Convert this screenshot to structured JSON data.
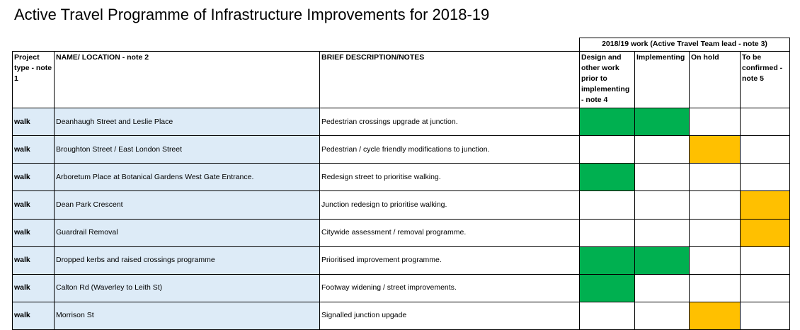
{
  "title": "Active Travel Programme of Infrastructure Improvements for 2018-19",
  "table": {
    "group_header": "2018/19 work (Active Travel Team lead - note 3)",
    "columns": [
      "Project type - note 1",
      "NAME/ LOCATION - note 2",
      "BRIEF DESCRIPTION/NOTES",
      "Design and other work prior to implementing - note 4",
      "Implementing",
      "On hold",
      "To be confirmed - note 5"
    ],
    "name_fill": "#ddebf7",
    "rows": [
      {
        "type": "walk",
        "name": "Deanhaugh Street and Leslie Place",
        "description": "Pedestrian crossings upgrade at junction.",
        "status": [
          "#00b050",
          "#00b050",
          null,
          null
        ]
      },
      {
        "type": "walk",
        "name": "Broughton Street / East London Street",
        "description": "Pedestrian / cycle friendly modifications to junction.",
        "status": [
          null,
          null,
          "#ffc000",
          null
        ]
      },
      {
        "type": "walk",
        "name": "Arboretum Place at Botanical Gardens West Gate Entrance.",
        "description": "Redesign street to prioritise walking.",
        "status": [
          "#00b050",
          null,
          null,
          null
        ]
      },
      {
        "type": "walk",
        "name": "Dean Park Crescent",
        "description": "Junction redesign to prioritise walking.",
        "status": [
          null,
          null,
          null,
          "#ffc000"
        ]
      },
      {
        "type": "walk",
        "name": "Guardrail Removal",
        "description": "Citywide assessment / removal programme.",
        "status": [
          null,
          null,
          null,
          "#ffc000"
        ]
      },
      {
        "type": "walk",
        "name": "Dropped kerbs and raised crossings programme",
        "description": "Prioritised improvement programme.",
        "status": [
          "#00b050",
          "#00b050",
          null,
          null
        ]
      },
      {
        "type": "walk",
        "name": "Calton Rd (Waverley to Leith St)",
        "description": "Footway widening / street improvements.",
        "status": [
          "#00b050",
          null,
          null,
          null
        ]
      },
      {
        "type": "walk",
        "name": "Morrison St",
        "description": "Signalled junction upgade",
        "status": [
          null,
          null,
          "#ffc000",
          null
        ]
      }
    ]
  }
}
